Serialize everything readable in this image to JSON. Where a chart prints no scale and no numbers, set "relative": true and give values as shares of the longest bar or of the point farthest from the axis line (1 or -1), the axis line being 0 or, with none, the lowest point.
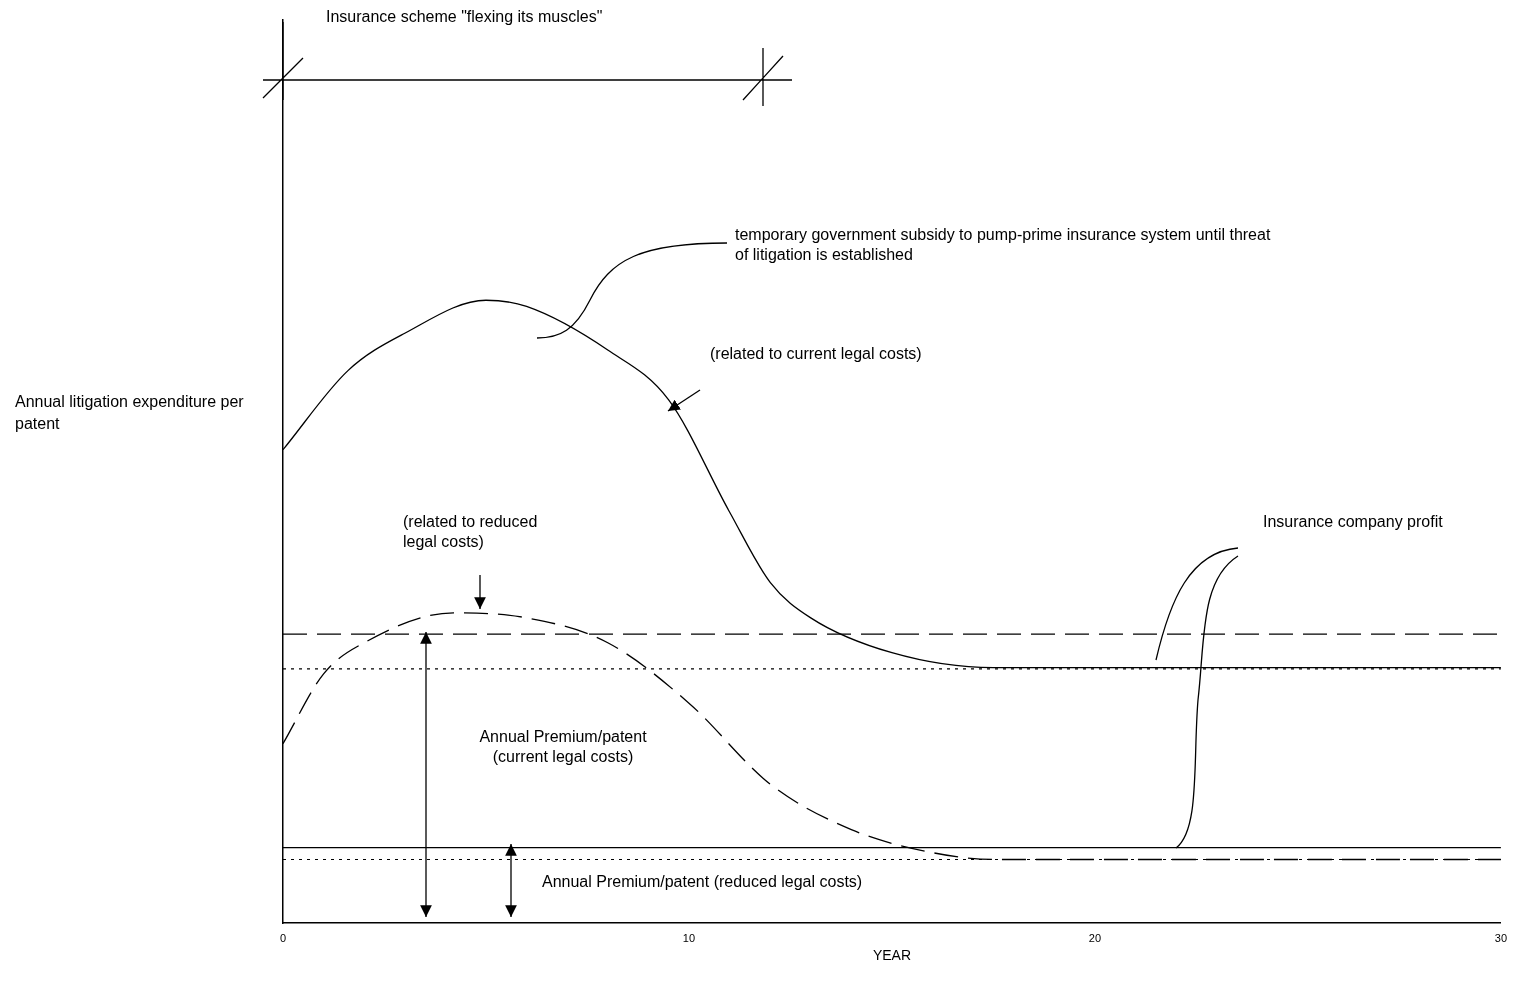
{
  "chart_data": {
    "type": "line",
    "relative": true,
    "xlabel": "YEAR",
    "ylabel": "Annual litigation expenditure per patent",
    "xlim": [
      0,
      30
    ],
    "xticks": [
      0,
      10,
      20,
      30
    ],
    "grid": false,
    "legend": false,
    "marker": "none",
    "series": [
      {
        "color": "#000000",
        "line_style": "solid",
        "x": [
          0,
          1.6,
          3,
          5,
          6,
          8,
          9.5,
          11,
          12,
          13,
          15,
          17.5,
          30
        ],
        "values": [
          0.76,
          0.887,
          0.947,
          1.0,
          0.99,
          0.92,
          0.84,
          0.66,
          0.547,
          0.49,
          0.434,
          0.41,
          0.41
        ]
      },
      {
        "color": "#000000",
        "line_style": "dashed",
        "x": [
          0,
          1,
          2,
          4.2,
          6,
          8,
          10,
          12,
          14,
          16,
          17.5,
          30
        ],
        "values": [
          0.288,
          0.4,
          0.45,
          0.498,
          0.49,
          0.45,
          0.353,
          0.223,
          0.15,
          0.113,
          0.102,
          0.102
        ]
      }
    ],
    "ref_lines": [
      {
        "axis": "y",
        "value": 0.464,
        "line_style": "dashed",
        "color": "#000000"
      },
      {
        "axis": "y",
        "value": 0.408,
        "line_style": "dotted",
        "color": "#000000"
      },
      {
        "axis": "y",
        "value": 0.121,
        "line_style": "solid",
        "color": "#000000"
      },
      {
        "axis": "y",
        "value": 0.102,
        "line_style": "dotted",
        "color": "#000000"
      }
    ],
    "annotations": [
      "Insurance scheme \"flexing its muscles\"",
      "temporary government subsidy to pump-prime insurance system until threat of litigation is established",
      "(related to current legal costs)",
      "(related to reduced legal costs)",
      "Insurance company profit",
      "Annual Premium/patent (current legal costs)",
      "Annual Premium/patent (reduced legal costs)"
    ]
  }
}
